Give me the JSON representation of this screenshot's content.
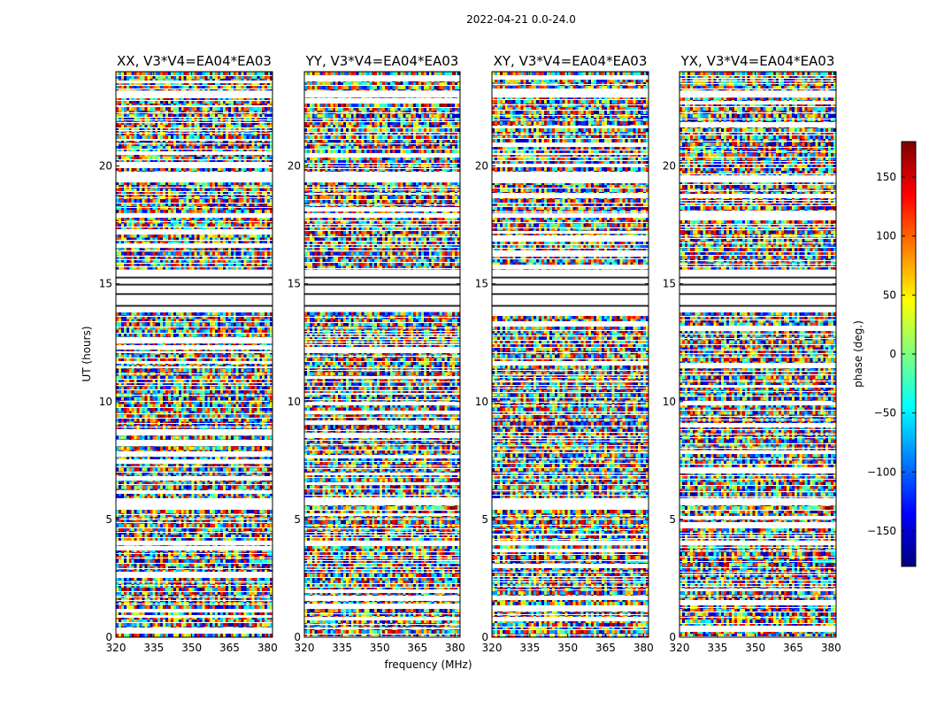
{
  "chart_data": {
    "type": "heatmap",
    "suptitle": "2022-04-21 0.0-24.0",
    "xlabel": "frequency (MHz)",
    "ylabel": "UT (hours)",
    "xlim": [
      320,
      382
    ],
    "ylim": [
      0,
      24
    ],
    "xticks": [
      "320",
      "335",
      "350",
      "365",
      "380"
    ],
    "yticks": [
      "0",
      "5",
      "10",
      "15",
      "20"
    ],
    "colorbar": {
      "label": "phase (deg.)",
      "range": [
        -180,
        180
      ],
      "ticks": [
        "150",
        "100",
        "50",
        "0",
        "−50",
        "−100",
        "−150"
      ],
      "colormap": [
        "#00007f",
        "#0000ff",
        "#007fff",
        "#00ffff",
        "#7fff7f",
        "#ffff00",
        "#ff7f00",
        "#ff0000",
        "#7f0000"
      ]
    },
    "panels": [
      {
        "title": "XX, V3*V4=EA04*EA03"
      },
      {
        "title": "YY, V3*V4=EA04*EA03"
      },
      {
        "title": "XY, V3*V4=EA04*EA03"
      },
      {
        "title": "YX, V3*V4=EA04*EA03"
      }
    ]
  }
}
